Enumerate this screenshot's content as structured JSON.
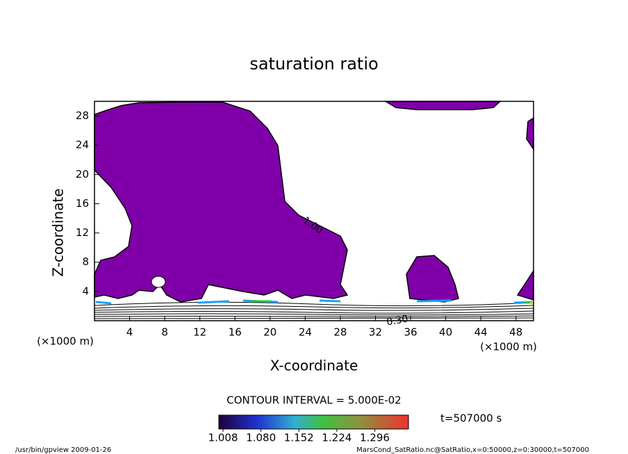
{
  "chart_data": {
    "type": "contour",
    "title": "saturation ratio",
    "x_label": "X-coordinate",
    "y_label": "Z-coordinate",
    "x_unit": "(×1000 m)",
    "y_unit": "(×1000 m)",
    "xlim": [
      0,
      50
    ],
    "xticks": [
      4,
      8,
      12,
      16,
      20,
      24,
      28,
      32,
      36,
      40,
      44,
      48
    ],
    "ylim": [
      0,
      30
    ],
    "yticks": [
      4,
      8,
      12,
      16,
      20,
      24,
      28
    ],
    "fill_color": "#7f00a8",
    "contour_labels": [
      {
        "value": 1,
        "label": "1.00"
      },
      {
        "value": 0.3,
        "label": "0.30"
      }
    ],
    "contour_interval": "CONTOUR INTERVAL = 5.000E-02",
    "colorbar": {
      "lim": [
        1.0,
        1.36
      ],
      "ticks": [
        1.008,
        {
          "value": 1.08,
          "label": "1.080"
        },
        1.152,
        1.224,
        1.296
      ]
    },
    "time_label": "t=507000 s",
    "footer_left": "/usr/bin/gpview  2009-01-26",
    "footer_right": "MarsCond_SatRatio.nc@SatRatio,x=0:50000,z=0:30000,t=507000"
  }
}
